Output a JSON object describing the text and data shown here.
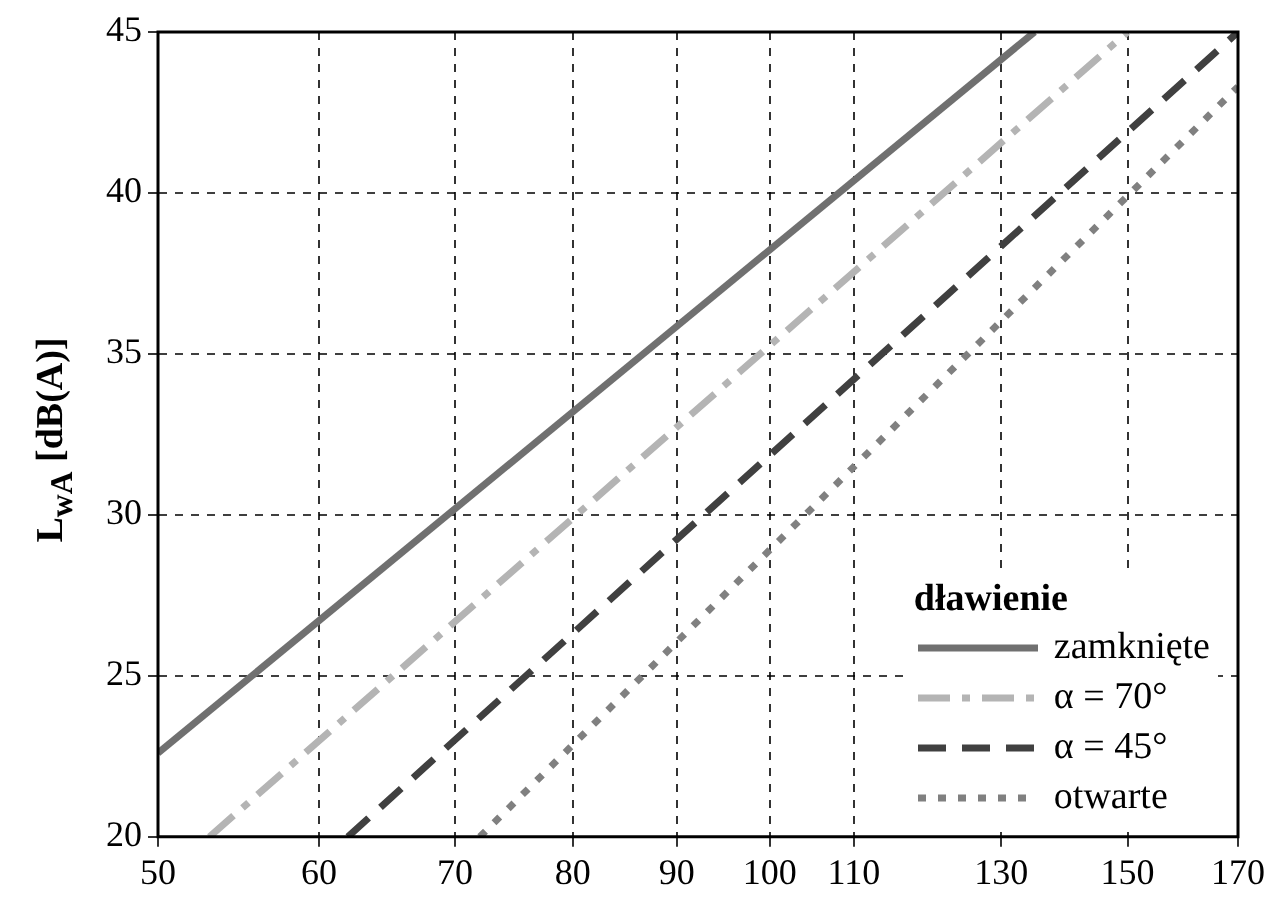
{
  "chart_data": {
    "type": "line",
    "ylabel": "L$_{wA}$ [dB(A)]",
    "legend_title": "dławienie",
    "log": "x",
    "grid": true,
    "legend": "bottom right",
    "marker": "none",
    "xlim": [
      50,
      170
    ],
    "xticks": [
      50,
      60,
      70,
      80,
      90,
      100,
      110,
      130,
      150,
      170
    ],
    "ylim": [
      20,
      45
    ],
    "yticks": [
      20,
      25,
      30,
      35,
      40,
      45
    ],
    "series": [
      {
        "name": "zamknięte",
        "color": "#707070",
        "line_style": "solid",
        "x": [
          50,
          135
        ],
        "values": [
          22.6,
          45
        ]
      },
      {
        "name": "α = 70°",
        "color": "#b4b4b4",
        "line_style": "dashdot",
        "x": [
          53,
          150
        ],
        "values": [
          20,
          45
        ]
      },
      {
        "name": "α = 45°",
        "color": "#404040",
        "line_style": "dashed",
        "x": [
          62,
          170
        ],
        "values": [
          20,
          45
        ]
      },
      {
        "name": "otwarte",
        "color": "#808080",
        "line_style": "dotted",
        "x": [
          72,
          170
        ],
        "values": [
          20,
          43.3
        ]
      }
    ]
  }
}
